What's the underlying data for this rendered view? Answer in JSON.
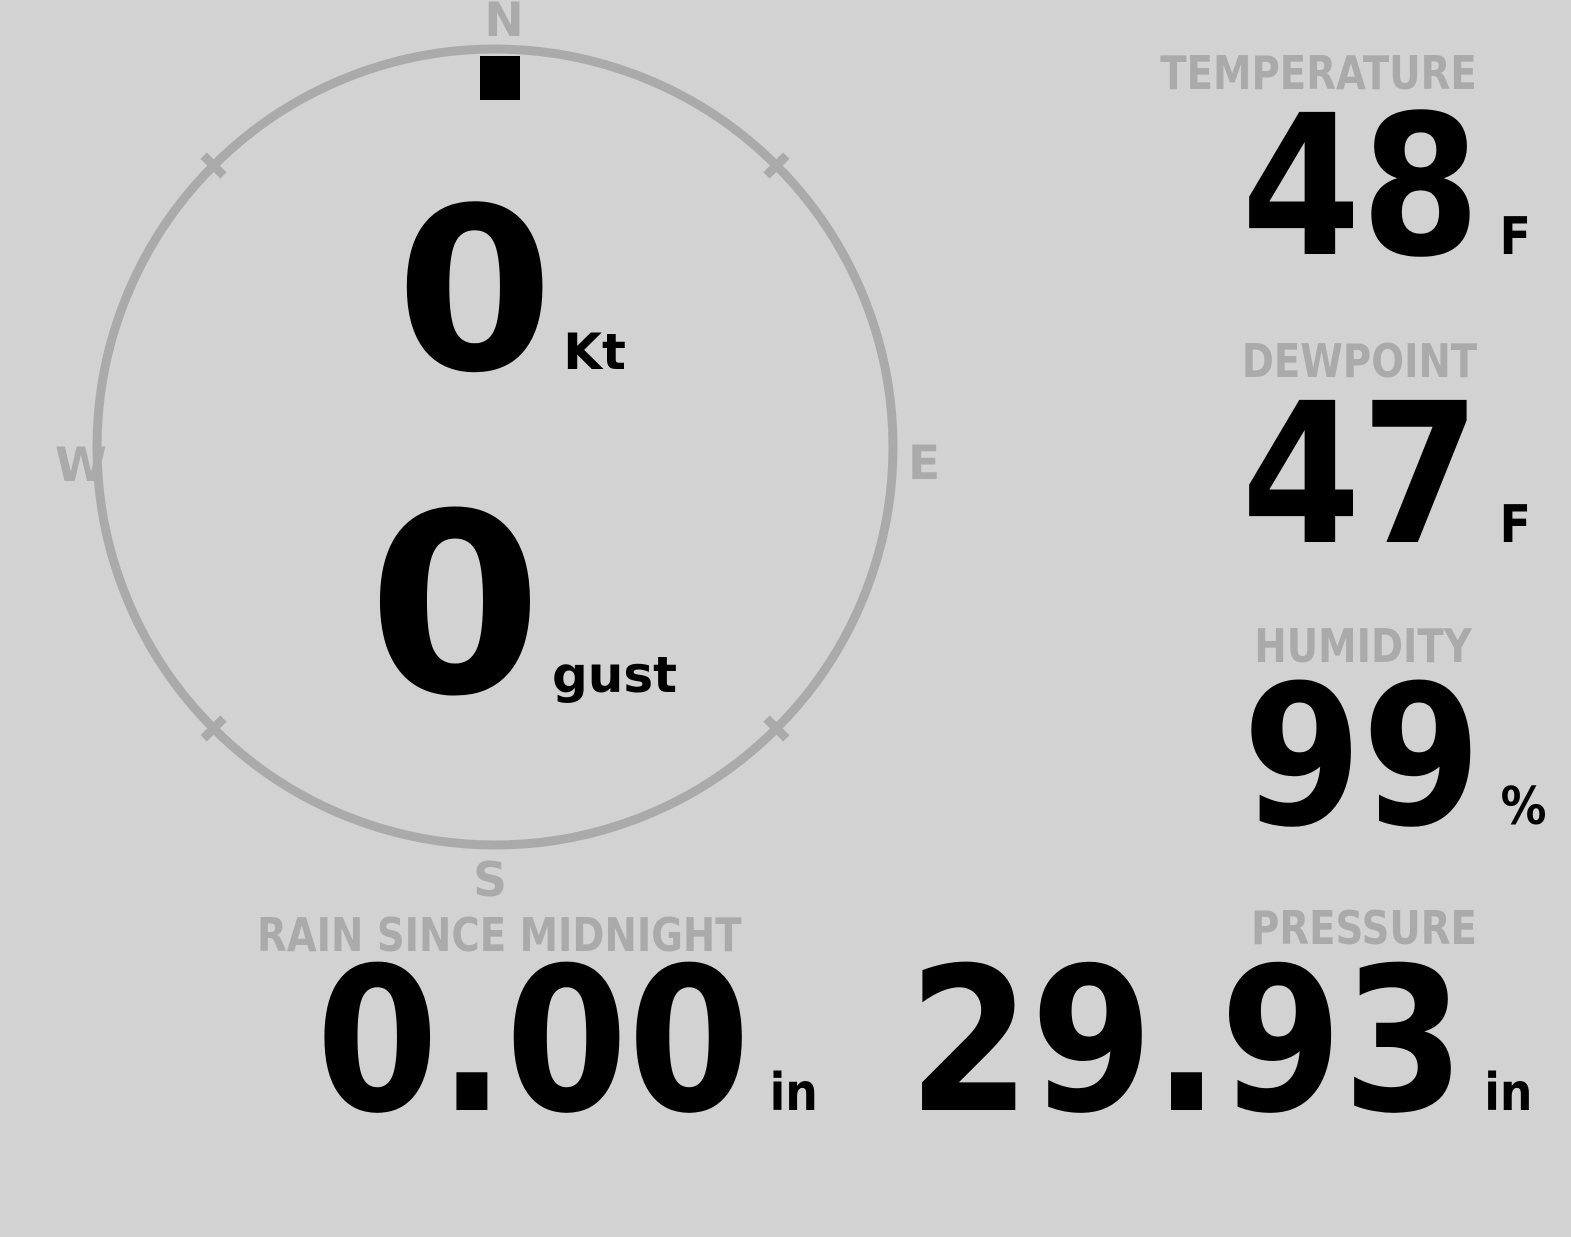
{
  "colors": {
    "background": "#d2d2d2",
    "muted": "#aaaaaa",
    "value": "#000000"
  },
  "compass": {
    "cardinals": {
      "n": "N",
      "e": "E",
      "s": "S",
      "w": "W"
    },
    "wind": {
      "speed": "0",
      "speed_unit": "Kt",
      "gust": "0",
      "gust_unit": "gust",
      "direction_deg": 0
    }
  },
  "panels": {
    "temperature": {
      "label": "TEMPERATURE",
      "value": "48",
      "unit": "F"
    },
    "dewpoint": {
      "label": "DEWPOINT",
      "value": "47",
      "unit": "F"
    },
    "humidity": {
      "label": "HUMIDITY",
      "value": "99",
      "unit": "%"
    },
    "rain": {
      "label": "RAIN SINCE MIDNIGHT",
      "value": "0.00",
      "unit": "in"
    },
    "pressure": {
      "label": "PRESSURE",
      "value": "29.93",
      "unit": "in"
    }
  }
}
